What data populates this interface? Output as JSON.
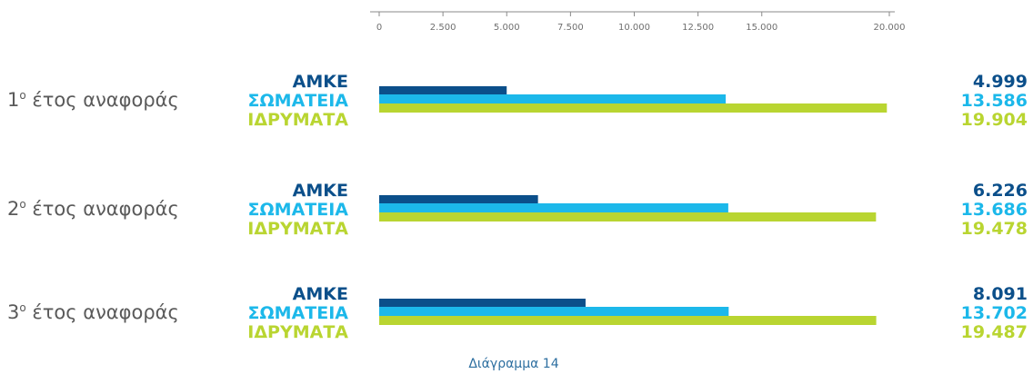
{
  "chart_data": {
    "type": "bar",
    "orientation": "horizontal",
    "categories": [
      "1º έτος αναφοράς",
      "2º έτος αναφοράς",
      "3º έτος αναφοράς"
    ],
    "series": [
      {
        "name": "ΑΜΚΕ",
        "color": "#0b4f8a",
        "values": [
          4999,
          6226,
          8091
        ],
        "labels": [
          "4.999",
          "6.226",
          "8.091"
        ]
      },
      {
        "name": "ΣΩΜΑΤΕΙΑ",
        "color": "#1cb8ea",
        "values": [
          13586,
          13686,
          13702
        ],
        "labels": [
          "13.586",
          "13.686",
          "13.702"
        ]
      },
      {
        "name": "ΙΔΡΥΜΑΤΑ",
        "color": "#b9d531",
        "values": [
          19904,
          19478,
          19487
        ],
        "labels": [
          "19.904",
          "19.478",
          "19.487"
        ]
      }
    ],
    "xlim": [
      0,
      20000
    ],
    "ticks": [
      0,
      2500,
      5000,
      7500,
      10000,
      12500,
      15000,
      20000
    ],
    "tick_labels": [
      "0",
      "2.500",
      "5.000",
      "7.500",
      "10.000",
      "12.500",
      "15.000",
      "20.000"
    ],
    "axis_position": "top",
    "grid": false,
    "caption": "Διάγραμμα 14"
  }
}
